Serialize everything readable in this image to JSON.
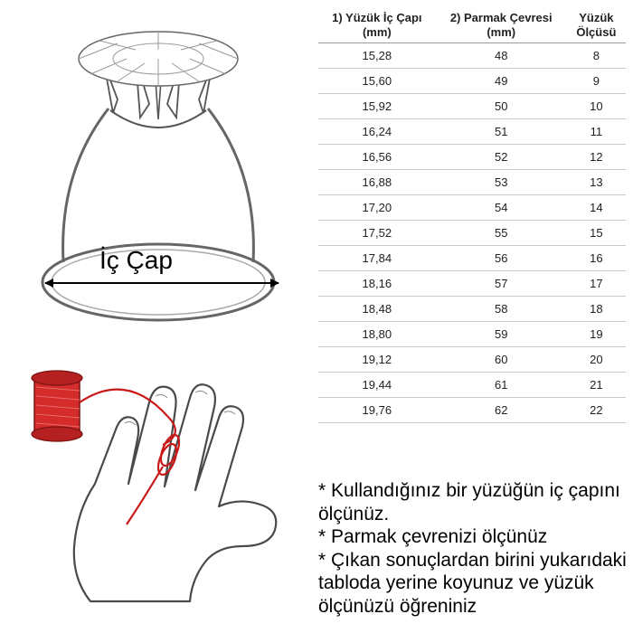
{
  "ring": {
    "label": "İç Çap"
  },
  "table": {
    "columns": [
      "1) Yüzük İç Çapı (mm)",
      "2) Parmak Çevresi (mm)",
      "Yüzük Ölçüsü"
    ],
    "col1_line1": "1) Yüzük İç Çapı",
    "col1_line2": "(mm)",
    "col2_line1": "2) Parmak Çevresi",
    "col2_line2": "(mm)",
    "col3_line1": "Yüzük",
    "col3_line2": "Ölçüsü",
    "rows": [
      [
        "15,28",
        "48",
        "8"
      ],
      [
        "15,60",
        "49",
        "9"
      ],
      [
        "15,92",
        "50",
        "10"
      ],
      [
        "16,24",
        "51",
        "11"
      ],
      [
        "16,56",
        "52",
        "12"
      ],
      [
        "16,88",
        "53",
        "13"
      ],
      [
        "17,20",
        "54",
        "14"
      ],
      [
        "17,52",
        "55",
        "15"
      ],
      [
        "17,84",
        "56",
        "16"
      ],
      [
        "18,16",
        "57",
        "17"
      ],
      [
        "18,48",
        "58",
        "18"
      ],
      [
        "18,80",
        "59",
        "19"
      ],
      [
        "19,12",
        "60",
        "20"
      ],
      [
        "19,44",
        "61",
        "21"
      ],
      [
        "19,76",
        "62",
        "22"
      ]
    ]
  },
  "notes": {
    "n1": "* Kullandığınız bir yüzüğün iç çapını ölçünüz.",
    "n2": "* Parmak çevrenizi ölçünüz",
    "n3": "* Çıkan sonuçlardan birini yukarıdaki tabloda yerine koyunuz ve yüzük ölçünüzü öğreniniz"
  },
  "colors": {
    "spool": "#d42b2b",
    "thread": "#c81818",
    "outline": "#4a4a4a",
    "sketch": "#888"
  }
}
